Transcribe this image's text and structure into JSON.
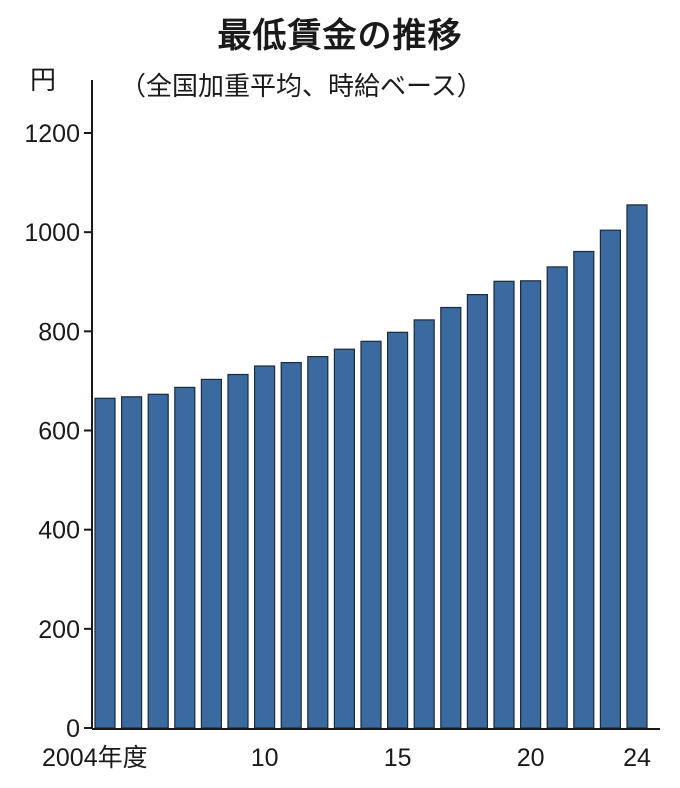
{
  "title": "最低賃金の推移",
  "subtitle": "（全国加重平均、時給ベース）",
  "unit": "円",
  "chart_data": {
    "type": "bar",
    "title": "最低賃金の推移",
    "subtitle": "（全国加重平均、時給ベース）",
    "ylabel": "円",
    "xlabel": "",
    "categories": [
      "2004",
      "2005",
      "2006",
      "2007",
      "2008",
      "2009",
      "2010",
      "2011",
      "2012",
      "2013",
      "2014",
      "2015",
      "2016",
      "2017",
      "2018",
      "2019",
      "2020",
      "2021",
      "2022",
      "2023",
      "2024"
    ],
    "values": [
      665,
      668,
      673,
      687,
      703,
      713,
      730,
      737,
      749,
      764,
      780,
      798,
      823,
      848,
      874,
      901,
      902,
      930,
      961,
      1004,
      1055
    ],
    "ylim": [
      0,
      1200
    ],
    "yticks": [
      0,
      200,
      400,
      600,
      800,
      1000,
      1200
    ],
    "xtick_labels": [
      {
        "category": "2004",
        "label": "2004年度"
      },
      {
        "category": "2010",
        "label": "10"
      },
      {
        "category": "2015",
        "label": "15"
      },
      {
        "category": "2020",
        "label": "20"
      },
      {
        "category": "2024",
        "label": "24"
      }
    ],
    "grid": false,
    "bar_color": "#3a6aa0",
    "bar_edge_color": "#1c2a3a"
  }
}
